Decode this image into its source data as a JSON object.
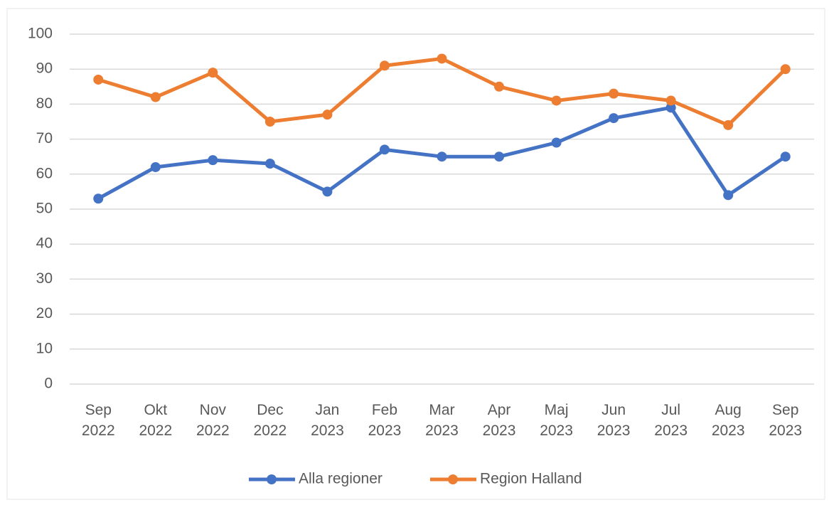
{
  "chart_data": {
    "type": "line",
    "categories": [
      "Sep 2022",
      "Okt 2022",
      "Nov 2022",
      "Dec 2022",
      "Jan 2023",
      "Feb 2023",
      "Mar 2023",
      "Apr 2023",
      "Maj 2023",
      "Jun 2023",
      "Jul 2023",
      "Aug 2023",
      "Sep 2023"
    ],
    "series": [
      {
        "name": "Alla regioner",
        "color": "#4472c4",
        "values": [
          53,
          62,
          64,
          63,
          55,
          67,
          65,
          65,
          69,
          76,
          79,
          54,
          65
        ]
      },
      {
        "name": "Region Halland",
        "color": "#ed7d31",
        "values": [
          87,
          82,
          89,
          75,
          77,
          91,
          93,
          85,
          81,
          83,
          81,
          74,
          90
        ]
      }
    ],
    "ylim": [
      0,
      100
    ],
    "yticks": [
      0,
      10,
      20,
      30,
      40,
      50,
      60,
      70,
      80,
      90,
      100
    ],
    "grid": true,
    "legend": "bottom"
  }
}
